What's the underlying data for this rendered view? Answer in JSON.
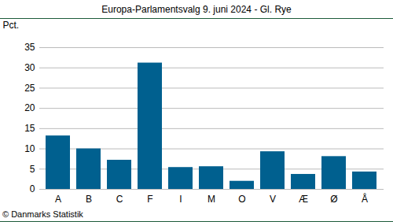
{
  "chart_data": {
    "type": "bar",
    "title": "Europa-Parlamentsvalg 9. juni 2024 - Gl. Rye",
    "y_label": "Pct.",
    "caption": "© Danmarks Statistik",
    "categories": [
      "A",
      "B",
      "C",
      "F",
      "I",
      "M",
      "O",
      "V",
      "Æ",
      "Ø",
      "Å"
    ],
    "values": [
      13.2,
      10.0,
      7.2,
      31.2,
      5.4,
      5.6,
      2.0,
      9.3,
      3.7,
      8.1,
      4.3
    ],
    "color": "#00608f",
    "ylim": [
      0,
      35
    ],
    "yticks": [
      0,
      5,
      10,
      15,
      20,
      25,
      30,
      35
    ],
    "grid": true
  }
}
